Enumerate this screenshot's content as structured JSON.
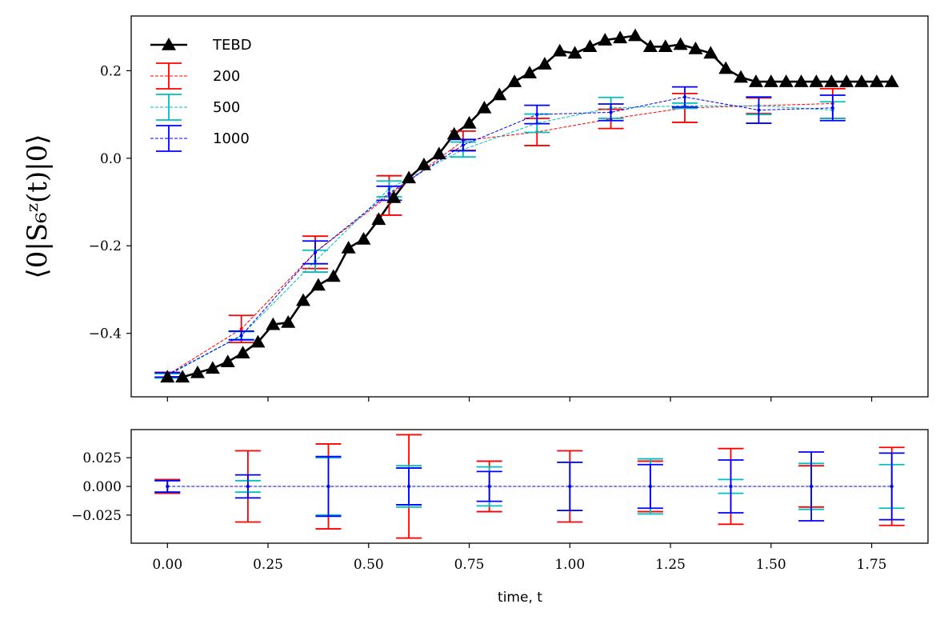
{
  "chart_data": [
    {
      "type": "line",
      "panel": "top",
      "ylabel": "⟨0|S₆ᶻ(t)|0⟩",
      "xlim": [
        -0.09,
        1.89
      ],
      "ylim": [
        -0.545,
        0.325
      ],
      "yticks": [
        -0.4,
        -0.2,
        0.0,
        0.2
      ],
      "ytick_labels": [
        "−0.4",
        "−0.2",
        "0.0",
        "0.2"
      ],
      "grid": false,
      "legend_position": "top-left",
      "legend_entries": [
        "TEBD",
        "200",
        "500",
        "1000"
      ],
      "tebd": {
        "name": "TEBD",
        "color": "#000000",
        "marker": "triangle",
        "x": [
          0.0,
          0.0375,
          0.075,
          0.1125,
          0.15,
          0.1875,
          0.225,
          0.2625,
          0.3,
          0.3375,
          0.375,
          0.4125,
          0.45,
          0.4875,
          0.525,
          0.5625,
          0.6,
          0.6375,
          0.675,
          0.7125,
          0.75,
          0.7875,
          0.825,
          0.8625,
          0.9,
          0.9375,
          0.975,
          1.0125,
          1.05,
          1.0875,
          1.125,
          1.1625,
          1.2,
          1.2375,
          1.275,
          1.3125,
          1.35,
          1.3875,
          1.425,
          1.4625,
          1.5,
          1.5375,
          1.575,
          1.6125,
          1.65,
          1.6875,
          1.725,
          1.7625,
          1.8
        ],
        "y": [
          -0.5,
          -0.5,
          -0.49,
          -0.48,
          -0.465,
          -0.445,
          -0.42,
          -0.38,
          -0.375,
          -0.325,
          -0.29,
          -0.27,
          -0.205,
          -0.185,
          -0.14,
          -0.09,
          -0.045,
          -0.015,
          0.01,
          0.055,
          0.08,
          0.115,
          0.145,
          0.175,
          0.195,
          0.215,
          0.245,
          0.24,
          0.255,
          0.27,
          0.275,
          0.28,
          0.255,
          0.255,
          0.26,
          0.25,
          0.24,
          0.205,
          0.185,
          0.175,
          0.175,
          0.175,
          0.175,
          0.175,
          0.175,
          0.175,
          0.175,
          0.175,
          0.175
        ]
      },
      "x": [
        0.0,
        0.1837,
        0.3673,
        0.551,
        0.7347,
        0.9184,
        1.102,
        1.2857,
        1.4694,
        1.6531
      ],
      "series": [
        {
          "name": "200",
          "color": "#ff0000",
          "values": [
            -0.495,
            -0.39,
            -0.215,
            -0.085,
            0.04,
            0.06,
            0.09,
            0.115,
            0.12,
            0.125
          ],
          "errors": [
            0.006,
            0.031,
            0.037,
            0.045,
            0.022,
            0.031,
            0.022,
            0.033,
            0.018,
            0.034
          ]
        },
        {
          "name": "500",
          "color": "#00bfbf",
          "values": [
            -0.497,
            -0.405,
            -0.235,
            -0.07,
            0.02,
            0.08,
            0.115,
            0.12,
            0.12,
            0.11
          ],
          "errors": [
            0.005,
            0.009,
            0.025,
            0.018,
            0.017,
            0.021,
            0.024,
            0.006,
            0.02,
            0.019
          ]
        },
        {
          "name": "1000",
          "color": "#0000ff",
          "values": [
            -0.495,
            -0.405,
            -0.215,
            -0.08,
            0.03,
            0.1,
            0.105,
            0.14,
            0.11,
            0.115
          ],
          "errors": [
            0.005,
            0.01,
            0.026,
            0.016,
            0.013,
            0.021,
            0.019,
            0.023,
            0.03,
            0.029
          ]
        }
      ]
    },
    {
      "type": "line",
      "panel": "bottom",
      "xlabel": "time, t",
      "xlim": [
        -0.09,
        1.89
      ],
      "ylim": [
        -0.0495,
        0.0495
      ],
      "xticks": [
        0.0,
        0.25,
        0.5,
        0.75,
        1.0,
        1.25,
        1.5,
        1.75
      ],
      "xtick_labels": [
        "0.00",
        "0.25",
        "0.50",
        "0.75",
        "1.00",
        "1.25",
        "1.50",
        "1.75"
      ],
      "yticks": [
        -0.025,
        0.0,
        0.025
      ],
      "ytick_labels": [
        "−0.025",
        "0.000",
        "0.025"
      ],
      "grid": false,
      "x": [
        0.0,
        0.2,
        0.4,
        0.6,
        0.8,
        1.0,
        1.2,
        1.4,
        1.6,
        1.8
      ],
      "series": [
        {
          "name": "200",
          "color": "#ff0000",
          "values": [
            0,
            0,
            0,
            0,
            0,
            0,
            0,
            0,
            0,
            0
          ],
          "errors": [
            0.006,
            0.031,
            0.037,
            0.045,
            0.022,
            0.031,
            0.022,
            0.033,
            0.018,
            0.034
          ]
        },
        {
          "name": "500",
          "color": "#00bfbf",
          "values": [
            0,
            0,
            0,
            0,
            0,
            0,
            0,
            0,
            0,
            0
          ],
          "errors": [
            0.005,
            0.005,
            0.025,
            0.018,
            0.017,
            0.021,
            0.024,
            0.006,
            0.02,
            0.019
          ]
        },
        {
          "name": "1000",
          "color": "#0000ff",
          "values": [
            0,
            0,
            0,
            0,
            0,
            0,
            0,
            0,
            0,
            0
          ],
          "errors": [
            0.005,
            0.01,
            0.026,
            0.016,
            0.013,
            0.021,
            0.019,
            0.023,
            0.03,
            0.029
          ]
        }
      ]
    }
  ]
}
